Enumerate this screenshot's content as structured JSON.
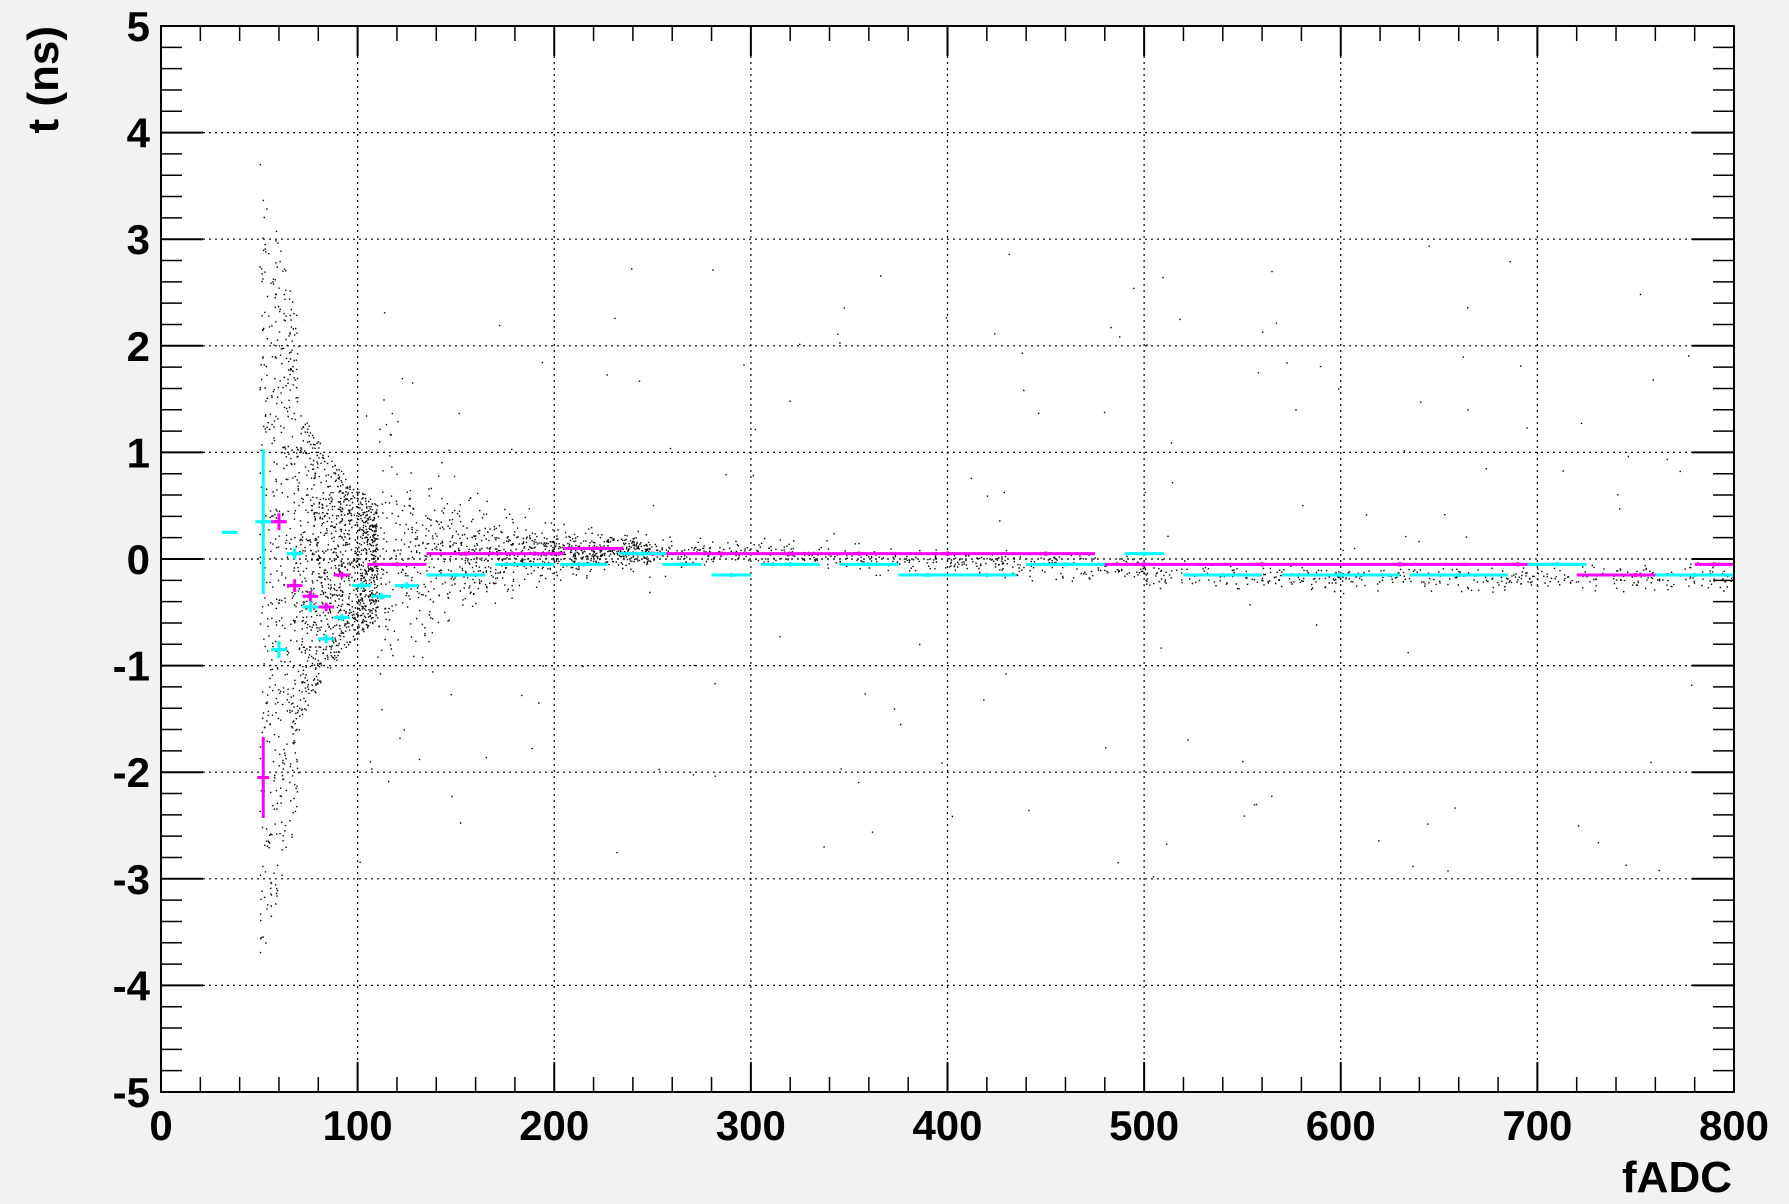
{
  "chart_data": {
    "type": "scatter",
    "title": "",
    "xlabel": "fADC",
    "ylabel": "t (ns)",
    "xlim": [
      0,
      800
    ],
    "ylim": [
      -5,
      5
    ],
    "x_ticks": [
      "0",
      "100",
      "200",
      "300",
      "400",
      "500",
      "600",
      "700",
      "800"
    ],
    "y_ticks": [
      "-5",
      "-4",
      "-3",
      "-2",
      "-1",
      "0",
      "1",
      "2",
      "3",
      "4",
      "5"
    ],
    "grid": true,
    "legend": "none",
    "colors": {
      "background": "#f2f2f2",
      "plot_area": "#ffffff",
      "points": "#000000",
      "magenta": "#ff00ff",
      "cyan": "#00ffff"
    },
    "scatter_description_points": "dense black points: wide spread near fADC 50-100, narrowing to band around t = -0.1 by fADC 800",
    "series": [
      {
        "color": "magenta",
        "style": "profile",
        "points": [
          {
            "x": 52,
            "y": -2.05,
            "xerr": 0,
            "yerr": 0.38
          },
          {
            "x": 60,
            "y": 0.35,
            "xerr": 4,
            "yerr": 0.08
          },
          {
            "x": 68,
            "y": -0.25,
            "xerr": 4,
            "yerr": 0.06
          },
          {
            "x": 76,
            "y": -0.35,
            "xerr": 4,
            "yerr": 0.05
          },
          {
            "x": 84,
            "y": -0.45,
            "xerr": 4,
            "yerr": 0.04
          },
          {
            "x": 92,
            "y": -0.15,
            "xerr": 4,
            "yerr": 0.03
          },
          {
            "x": 120,
            "y": -0.05,
            "xerr": 15,
            "yerr": 0.02
          },
          {
            "x": 155,
            "y": 0.05,
            "xerr": 20,
            "yerr": 0.02
          },
          {
            "x": 190,
            "y": 0.05,
            "xerr": 15,
            "yerr": 0.02
          },
          {
            "x": 220,
            "y": 0.1,
            "xerr": 15,
            "yerr": 0.02
          },
          {
            "x": 250,
            "y": 0.05,
            "xerr": 15,
            "yerr": 0.02
          },
          {
            "x": 285,
            "y": 0.05,
            "xerr": 20,
            "yerr": 0.02
          },
          {
            "x": 320,
            "y": 0.05,
            "xerr": 15,
            "yerr": 0.02
          },
          {
            "x": 355,
            "y": 0.05,
            "xerr": 20,
            "yerr": 0.02
          },
          {
            "x": 400,
            "y": 0.05,
            "xerr": 25,
            "yerr": 0.02
          },
          {
            "x": 450,
            "y": 0.05,
            "xerr": 25,
            "yerr": 0.02
          },
          {
            "x": 500,
            "y": -0.05,
            "xerr": 25,
            "yerr": 0.02
          },
          {
            "x": 560,
            "y": -0.05,
            "xerr": 35,
            "yerr": 0.02
          },
          {
            "x": 630,
            "y": -0.05,
            "xerr": 35,
            "yerr": 0.02
          },
          {
            "x": 690,
            "y": -0.05,
            "xerr": 30,
            "yerr": 0.02
          },
          {
            "x": 750,
            "y": -0.15,
            "xerr": 30,
            "yerr": 0.02
          },
          {
            "x": 790,
            "y": -0.05,
            "xerr": 10,
            "yerr": 0.02
          }
        ]
      },
      {
        "color": "cyan",
        "style": "profile",
        "points": [
          {
            "x": 35,
            "y": 0.25,
            "xerr": 4,
            "yerr": 0
          },
          {
            "x": 52,
            "y": 0.35,
            "xerr": 4,
            "yerr": 0.68
          },
          {
            "x": 60,
            "y": -0.85,
            "xerr": 4,
            "yerr": 0.08
          },
          {
            "x": 68,
            "y": 0.05,
            "xerr": 4,
            "yerr": 0.05
          },
          {
            "x": 76,
            "y": -0.45,
            "xerr": 4,
            "yerr": 0.05
          },
          {
            "x": 84,
            "y": -0.75,
            "xerr": 4,
            "yerr": 0.04
          },
          {
            "x": 92,
            "y": -0.55,
            "xerr": 4,
            "yerr": 0.03
          },
          {
            "x": 102,
            "y": -0.25,
            "xerr": 5,
            "yerr": 0.03
          },
          {
            "x": 112,
            "y": -0.35,
            "xerr": 5,
            "yerr": 0.03
          },
          {
            "x": 125,
            "y": -0.25,
            "xerr": 6,
            "yerr": 0.03
          },
          {
            "x": 150,
            "y": -0.15,
            "xerr": 15,
            "yerr": 0.02
          },
          {
            "x": 185,
            "y": -0.05,
            "xerr": 15,
            "yerr": 0.02
          },
          {
            "x": 215,
            "y": -0.05,
            "xerr": 12,
            "yerr": 0.02
          },
          {
            "x": 245,
            "y": 0.05,
            "xerr": 12,
            "yerr": 0.02
          },
          {
            "x": 265,
            "y": -0.05,
            "xerr": 10,
            "yerr": 0.02
          },
          {
            "x": 290,
            "y": -0.15,
            "xerr": 10,
            "yerr": 0.02
          },
          {
            "x": 320,
            "y": -0.05,
            "xerr": 15,
            "yerr": 0.02
          },
          {
            "x": 360,
            "y": -0.05,
            "xerr": 15,
            "yerr": 0.02
          },
          {
            "x": 390,
            "y": -0.15,
            "xerr": 15,
            "yerr": 0.02
          },
          {
            "x": 420,
            "y": -0.15,
            "xerr": 15,
            "yerr": 0.02
          },
          {
            "x": 460,
            "y": -0.05,
            "xerr": 20,
            "yerr": 0.02
          },
          {
            "x": 500,
            "y": 0.05,
            "xerr": 10,
            "yerr": 0.02
          },
          {
            "x": 540,
            "y": -0.15,
            "xerr": 20,
            "yerr": 0.02
          },
          {
            "x": 600,
            "y": -0.15,
            "xerr": 30,
            "yerr": 0.02
          },
          {
            "x": 660,
            "y": -0.15,
            "xerr": 25,
            "yerr": 0.02
          },
          {
            "x": 710,
            "y": -0.05,
            "xerr": 15,
            "yerr": 0.02
          },
          {
            "x": 780,
            "y": -0.15,
            "xerr": 20,
            "yerr": 0.02
          }
        ]
      }
    ]
  }
}
